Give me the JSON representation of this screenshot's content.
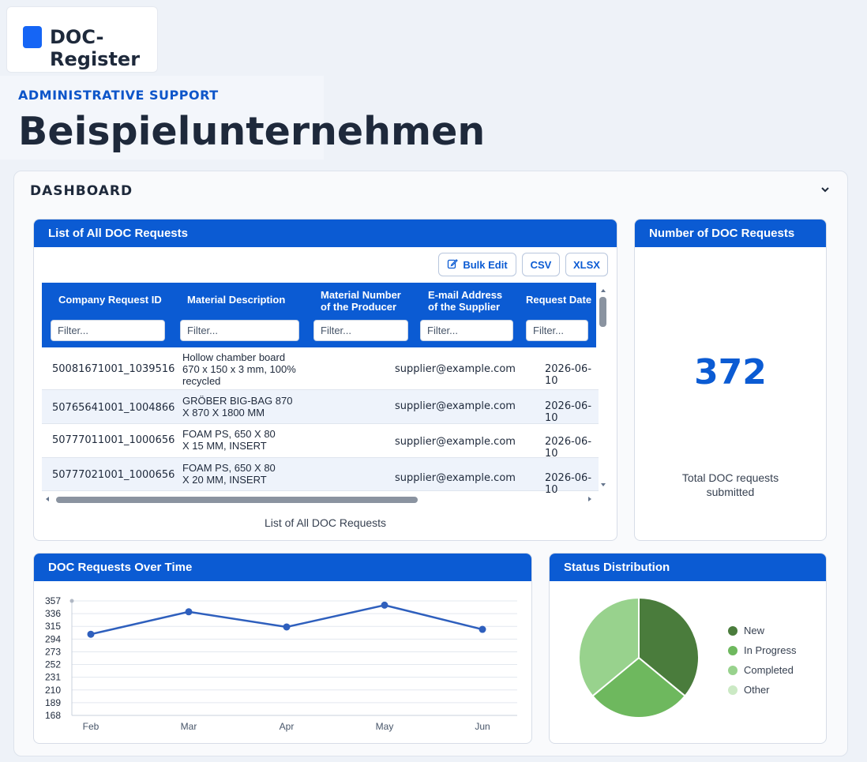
{
  "app": {
    "name": "DOC-Register"
  },
  "header": {
    "subtitle": "ADMINISTRATIVE SUPPORT",
    "title": "Beispielunternehmen"
  },
  "dashboard": {
    "title": "DASHBOARD",
    "collapse_icon": "chevron-down-icon",
    "table_panel": {
      "title": "List of All DOC Requests",
      "buttons": {
        "bulk_edit": "Bulk Edit",
        "csv": "CSV",
        "xlsx": "XLSX"
      },
      "columns": [
        {
          "label": "Company Request ID",
          "filter_placeholder": "Filter..."
        },
        {
          "label": "Material Description",
          "filter_placeholder": "Filter..."
        },
        {
          "label": "Material Number of the Producer",
          "filter_placeholder": "Filter..."
        },
        {
          "label": "E-mail Address of the Supplier",
          "filter_placeholder": "Filter..."
        },
        {
          "label": "Request Date",
          "filter_placeholder": "Filter..."
        }
      ],
      "rows": [
        {
          "id": "50081671001_1039516",
          "desc": "Hollow chamber board 670 x 150 x 3 mm, 100% recycled",
          "material_no": "",
          "email": "supplier@example.com",
          "date": "2026-06-10"
        },
        {
          "id": "50765641001_1004866",
          "desc": "GRÖBER BIG-BAG 870 X 870 X 1800 MM",
          "material_no": "",
          "email": "supplier@example.com",
          "date": "2026-06-10"
        },
        {
          "id": "50777011001_1000656",
          "desc": "FOAM PS, 650 X 80 X 15 MM, INSERT",
          "material_no": "",
          "email": "supplier@example.com",
          "date": "2026-06-10"
        },
        {
          "id": "50777021001_1000656",
          "desc": "FOAM PS, 650 X 80 X 20 MM, INSERT",
          "material_no": "",
          "email": "supplier@example.com",
          "date": "2026-06-10"
        }
      ],
      "caption": "List of All DOC Requests"
    },
    "kpi_panel": {
      "title": "Number of DOC Requests",
      "value": "372",
      "label": "Total DOC requests submitted"
    },
    "line_panel": {
      "title": "DOC Requests Over Time"
    },
    "pie_panel": {
      "title": "Status Distribution"
    }
  },
  "chart_data": [
    {
      "type": "line",
      "title": "DOC Requests Over Time",
      "categories": [
        "Feb",
        "Mar",
        "Apr",
        "May",
        "Jun"
      ],
      "series": [
        {
          "values": [
            302,
            339,
            314,
            350,
            310
          ]
        }
      ],
      "y_ticks": [
        "357",
        "336",
        "315",
        "294",
        "273",
        "252",
        "231",
        "210",
        "189",
        "168"
      ],
      "ylim": [
        168,
        357
      ],
      "grid": true,
      "color": "#2e5fbd"
    },
    {
      "type": "pie",
      "title": "Status Distribution",
      "labels": [
        "New",
        "In Progress",
        "Completed",
        "Other"
      ],
      "values": [
        36,
        28,
        36,
        0
      ],
      "colors": [
        "#4a7c3c",
        "#6eb85e",
        "#98d28d",
        "#cbe9c4"
      ],
      "legend": "right"
    }
  ]
}
